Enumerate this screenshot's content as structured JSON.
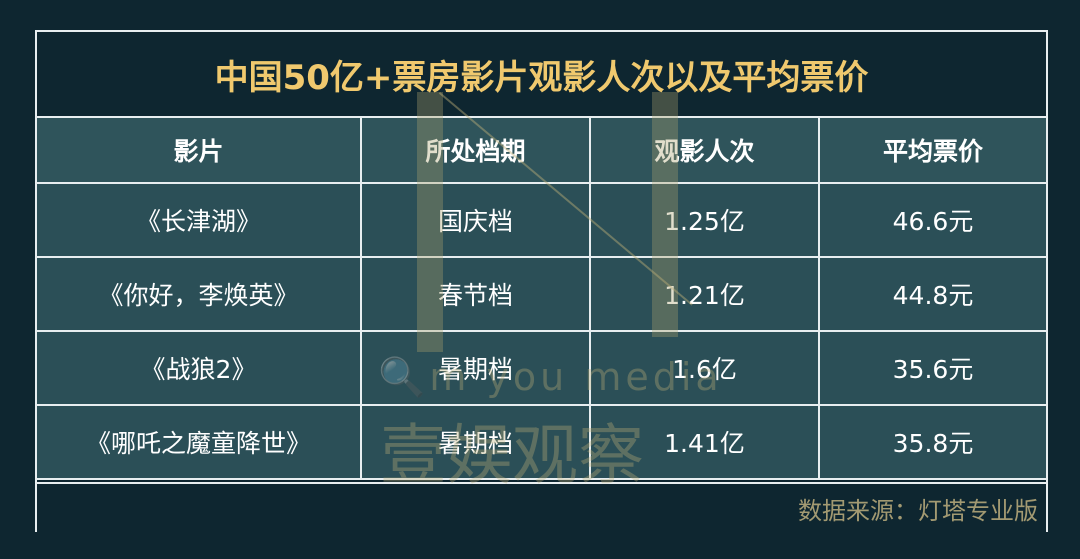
{
  "title": "中国50亿+票房影片观影人次以及平均票价",
  "chart_data": {
    "type": "table",
    "title": "中国50亿+票房影片观影人次以及平均票价",
    "columns": [
      "影片",
      "所处档期",
      "观影人次",
      "平均票价"
    ],
    "rows": [
      [
        "《长津湖》",
        "国庆档",
        "1.25亿",
        "46.6元"
      ],
      [
        "《你好，李焕英》",
        "春节档",
        "1.21亿",
        "44.8元"
      ],
      [
        "《战狼2》",
        "暑期档",
        "1.6亿",
        "35.6元"
      ],
      [
        "《哪吒之魔童降世》",
        "暑期档",
        "1.41亿",
        "35.8元"
      ]
    ]
  },
  "footer": "数据来源：灯塔专业版",
  "watermark": {
    "latin": "m you media",
    "chinese": "壹娱观察"
  },
  "colors": {
    "background": "#0e2630",
    "cell": "#2b4f57",
    "title": "#f0c96e",
    "source": "#a39a72"
  }
}
